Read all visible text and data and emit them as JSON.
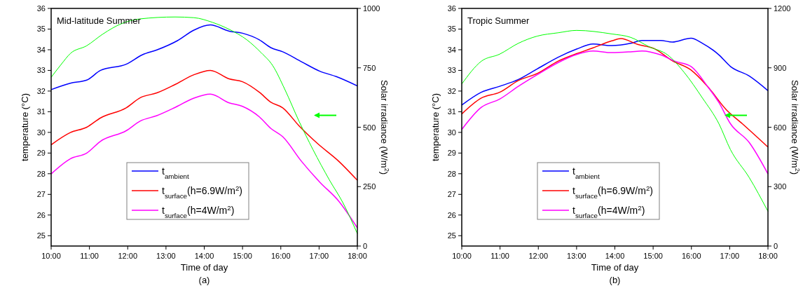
{
  "chart_data": [
    {
      "type": "line",
      "title": "Mid-latitude Summer",
      "xlabel": "Time of day",
      "ylabel": "temperature (°C)",
      "y2label": "Solar irradiance (W/m$^{2}$)",
      "annotations": [
        "(a)"
      ],
      "legend": "bottom",
      "grid": false,
      "xlim": [
        10,
        18
      ],
      "xticks": [
        {
          "value": 10,
          "label": "10:00"
        },
        {
          "value": 11,
          "label": "11:00"
        },
        {
          "value": 12,
          "label": "12:00"
        },
        {
          "value": 13,
          "label": "13:00"
        },
        {
          "value": 14,
          "label": "14:00"
        },
        {
          "value": 15,
          "label": "15:00"
        },
        {
          "value": 16,
          "label": "16:00"
        },
        {
          "value": 17,
          "label": "17:00"
        },
        {
          "value": 18,
          "label": "18:00"
        }
      ],
      "ylim": [
        24.5,
        36
      ],
      "yticks": [
        25,
        26,
        27,
        28,
        29,
        30,
        31,
        32,
        33,
        34,
        35,
        36
      ],
      "y2lim": [
        0,
        1000
      ],
      "y2ticks": [
        0,
        250,
        500,
        750,
        1000
      ],
      "series": [
        {
          "name": "t$_{ambient}$",
          "color": "#0000ff",
          "x": [
            10,
            10.5,
            10.93,
            11.29,
            11.96,
            12.39,
            12.76,
            13.3,
            13.73,
            14.16,
            14.65,
            15.0,
            15.44,
            15.74,
            16.05,
            16.54,
            17.02,
            17.45,
            18
          ],
          "values": [
            32.07,
            32.38,
            32.53,
            33.0,
            33.3,
            33.76,
            33.99,
            34.44,
            34.95,
            35.2,
            34.9,
            34.8,
            34.48,
            34.1,
            33.9,
            33.42,
            32.96,
            32.7,
            32.25
          ]
        },
        {
          "name": "t$_{surface}$(h=6.9W/m$^{2}$)",
          "color": "#ff0000",
          "x": [
            10,
            10.5,
            10.93,
            11.29,
            11.96,
            12.33,
            12.76,
            13.24,
            13.73,
            14.16,
            14.65,
            15.0,
            15.44,
            15.74,
            16.05,
            16.48,
            16.96,
            17.51,
            18
          ],
          "values": [
            29.4,
            29.99,
            30.25,
            30.7,
            31.19,
            31.68,
            31.91,
            32.32,
            32.79,
            33.0,
            32.59,
            32.45,
            31.94,
            31.46,
            31.19,
            30.31,
            29.46,
            28.61,
            27.68
          ]
        },
        {
          "name": "t$_{surface}$(h=4W/m$^{2}$)",
          "color": "#ff00ff",
          "x": [
            10,
            10.5,
            10.93,
            11.29,
            11.96,
            12.33,
            12.76,
            13.24,
            13.73,
            14.16,
            14.65,
            15.0,
            15.44,
            15.74,
            16.05,
            16.54,
            17.02,
            17.51,
            18
          ],
          "values": [
            27.99,
            28.72,
            29.0,
            29.57,
            30.08,
            30.55,
            30.81,
            31.21,
            31.66,
            31.85,
            31.43,
            31.26,
            30.75,
            30.19,
            29.79,
            28.6,
            27.59,
            26.68,
            25.38
          ]
        },
        {
          "color": "#00ff00",
          "axis": "y2",
          "x": [
            10,
            10.26,
            10.5,
            10.93,
            11.35,
            11.84,
            12.33,
            13.24,
            13.73,
            14.22,
            14.65,
            15.12,
            15.49,
            15.79,
            16.1,
            16.48,
            16.84,
            17.27,
            17.63,
            18
          ],
          "values": [
            710,
            764,
            810,
            843,
            892,
            936,
            956,
            964,
            961,
            941,
            912,
            867,
            813,
            759,
            661,
            524,
            406,
            278,
            180,
            52
          ]
        }
      ]
    },
    {
      "type": "line",
      "title": "Tropic Summer",
      "xlabel": "Time of day",
      "ylabel": "temperature (°C)",
      "y2label": "Solar irradiance (W/m$^{2}$)",
      "annotations": [
        "(b)"
      ],
      "legend": "bottom",
      "grid": false,
      "xlim": [
        10,
        18
      ],
      "xticks": [
        {
          "value": 10,
          "label": "10:00"
        },
        {
          "value": 11,
          "label": "11:00"
        },
        {
          "value": 12,
          "label": "12:00"
        },
        {
          "value": 13,
          "label": "13:00"
        },
        {
          "value": 14,
          "label": "14:00"
        },
        {
          "value": 15,
          "label": "15:00"
        },
        {
          "value": 16,
          "label": "16:00"
        },
        {
          "value": 17,
          "label": "17:00"
        },
        {
          "value": 18,
          "label": "18:00"
        }
      ],
      "ylim": [
        24.5,
        36
      ],
      "yticks": [
        25,
        26,
        27,
        28,
        29,
        30,
        31,
        32,
        33,
        34,
        35,
        36
      ],
      "y2lim": [
        0,
        1200
      ],
      "y2ticks": [
        0,
        300,
        600,
        900,
        1200
      ],
      "series": [
        {
          "name": "t$_{ambient}$",
          "color": "#0000ff",
          "x": [
            10,
            10.51,
            10.99,
            11.48,
            11.97,
            12.52,
            13.0,
            13.43,
            13.92,
            14.41,
            14.71,
            15.2,
            15.5,
            15.99,
            16.29,
            16.72,
            17.02,
            17.51,
            18
          ],
          "values": [
            31.32,
            31.94,
            32.23,
            32.56,
            33.07,
            33.64,
            34.03,
            34.28,
            34.2,
            34.31,
            34.45,
            34.45,
            34.37,
            34.56,
            34.31,
            33.75,
            33.19,
            32.73,
            32.02
          ]
        },
        {
          "name": "t$_{surface}$(h=6.9W/m$^{2}$)",
          "color": "#ff0000",
          "x": [
            10,
            10.51,
            10.99,
            11.48,
            11.97,
            12.52,
            13.0,
            13.43,
            13.92,
            14.16,
            14.59,
            15.02,
            15.5,
            15.99,
            16.42,
            16.91,
            17.33,
            18
          ],
          "values": [
            30.89,
            31.66,
            31.94,
            32.51,
            32.85,
            33.45,
            33.81,
            34.09,
            34.43,
            34.54,
            34.26,
            34.06,
            33.47,
            33.02,
            32.23,
            31.1,
            30.42,
            29.29
          ]
        },
        {
          "name": "t$_{surface}$(h=4W/m$^{2}$)",
          "color": "#ff00ff",
          "x": [
            10,
            10.51,
            10.99,
            11.48,
            11.97,
            12.52,
            13.0,
            13.43,
            13.92,
            14.41,
            14.71,
            15.2,
            15.56,
            15.99,
            16.42,
            16.72,
            17.02,
            17.51,
            18
          ],
          "values": [
            30.14,
            31.21,
            31.61,
            32.23,
            32.79,
            33.38,
            33.77,
            33.94,
            33.86,
            33.9,
            33.94,
            33.75,
            33.45,
            33.19,
            32.23,
            31.44,
            30.42,
            29.51,
            27.99
          ]
        },
        {
          "color": "#00ff00",
          "axis": "y2",
          "x": [
            10,
            10.51,
            10.99,
            11.48,
            11.97,
            12.52,
            13.0,
            13.92,
            14.41,
            14.9,
            15.38,
            15.81,
            16.29,
            16.72,
            17.02,
            17.51,
            18
          ],
          "values": [
            818,
            933,
            969,
            1024,
            1060,
            1077,
            1089,
            1071,
            1054,
            1006,
            965,
            877,
            747,
            617,
            487,
            346,
            175
          ]
        }
      ]
    }
  ]
}
